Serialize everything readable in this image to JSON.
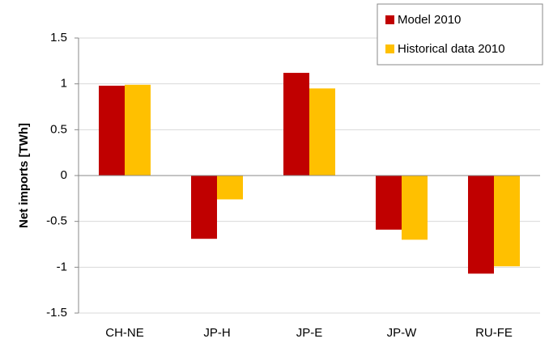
{
  "chart_data": {
    "type": "bar",
    "y_label": "Net imports [TWh]",
    "categories": [
      "CH-NE",
      "JP-H",
      "JP-E",
      "JP-W",
      "RU-FE"
    ],
    "series": [
      {
        "name": "Model 2010",
        "color": "#c00000",
        "values": [
          0.98,
          -0.69,
          1.12,
          -0.59,
          -1.07
        ]
      },
      {
        "name": "Historical data 2010",
        "color": "#ffc000",
        "values": [
          0.99,
          -0.26,
          0.95,
          -0.7,
          -0.99
        ]
      }
    ],
    "ylim": [
      -1.5,
      1.5
    ],
    "yticks": [
      -1.5,
      -1,
      -0.5,
      0,
      0.5,
      1,
      1.5
    ],
    "grid": true,
    "legend": "upper-right"
  }
}
